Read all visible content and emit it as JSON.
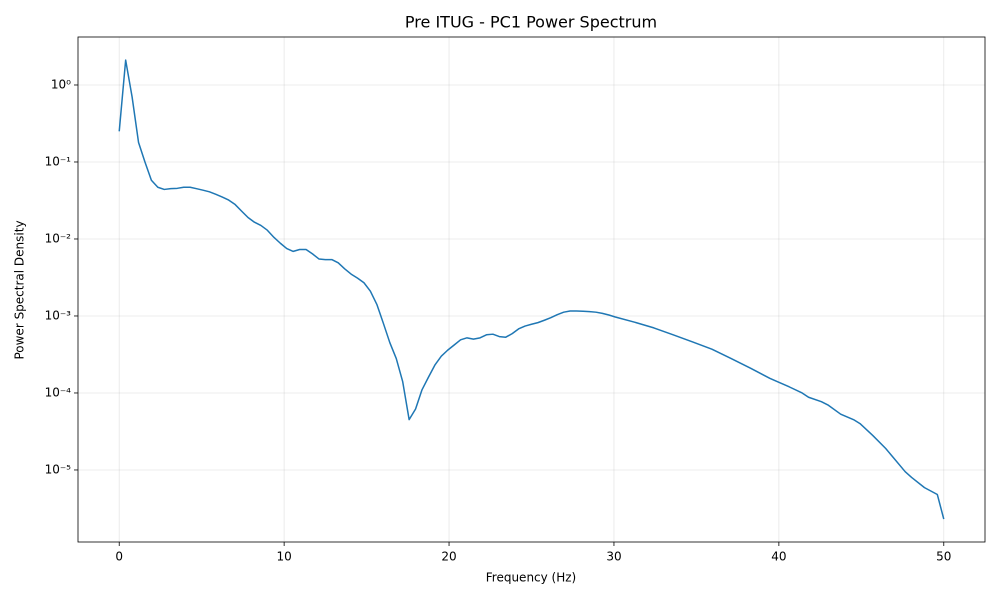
{
  "chart_data": {
    "type": "line",
    "title": "Pre ITUG - PC1 Power Spectrum",
    "x_label": "Frequency (Hz)",
    "y_label": "Power Spectral Density",
    "log_y": true,
    "grid": true,
    "xlim": [
      -2.5,
      52.5
    ],
    "xticks": [
      0,
      10,
      20,
      30,
      40,
      50
    ],
    "ylim": [
      1.16e-06,
      4.2
    ],
    "yticks": [
      {
        "value": 1e-05,
        "label": "10⁻⁵"
      },
      {
        "value": 0.0001,
        "label": "10⁻⁴"
      },
      {
        "value": 0.001,
        "label": "10⁻³"
      },
      {
        "value": 0.01,
        "label": "10⁻²"
      },
      {
        "value": 0.1,
        "label": "10⁻¹"
      },
      {
        "value": 1,
        "label": "10⁰"
      }
    ],
    "x": [
      0,
      0.39,
      0.78,
      1.17,
      1.56,
      1.95,
      2.34,
      2.73,
      3.13,
      3.52,
      3.91,
      4.3,
      4.69,
      5.08,
      5.47,
      5.86,
      6.25,
      6.64,
      7.03,
      7.42,
      7.81,
      8.2,
      8.59,
      8.98,
      9.38,
      9.77,
      10.16,
      10.55,
      10.94,
      11.33,
      11.72,
      12.11,
      12.5,
      12.89,
      13.28,
      13.67,
      14.06,
      14.45,
      14.84,
      15.23,
      15.63,
      16.02,
      16.41,
      16.8,
      17.19,
      17.58,
      17.97,
      18.36,
      18.75,
      19.14,
      19.53,
      19.92,
      20.31,
      20.7,
      21.09,
      21.48,
      21.88,
      22.27,
      22.66,
      23.05,
      23.44,
      23.83,
      24.22,
      24.61,
      25.0,
      25.39,
      25.78,
      26.17,
      26.56,
      26.95,
      27.34,
      27.73,
      28.13,
      28.52,
      28.91,
      29.3,
      29.69,
      30.08,
      31.25,
      32.42,
      33.59,
      34.77,
      35.94,
      37.11,
      38.28,
      39.45,
      40.63,
      41.41,
      41.8,
      42.58,
      42.97,
      43.75,
      44.53,
      44.92,
      45.7,
      46.48,
      46.88,
      47.66,
      48.05,
      48.83,
      49.61,
      50.0
    ],
    "series": [
      {
        "name": "PC1",
        "color": "#1f77b4",
        "values": [
          0.25,
          2.1,
          0.7,
          0.18,
          0.1,
          0.058,
          0.047,
          0.044,
          0.045,
          0.0455,
          0.047,
          0.047,
          0.045,
          0.043,
          0.041,
          0.038,
          0.035,
          0.032,
          0.028,
          0.023,
          0.019,
          0.0165,
          0.015,
          0.013,
          0.0105,
          0.0088,
          0.0075,
          0.0069,
          0.0073,
          0.0073,
          0.0064,
          0.0055,
          0.0054,
          0.0054,
          0.0049,
          0.0041,
          0.0035,
          0.0031,
          0.0027,
          0.0021,
          0.0014,
          0.0008,
          0.00045,
          0.00028,
          0.00014,
          4.5e-05,
          6.2e-05,
          0.00011,
          0.00016,
          0.00023,
          0.0003,
          0.00036,
          0.00042,
          0.00049,
          0.00052,
          0.0005,
          0.00052,
          0.00057,
          0.00058,
          0.00054,
          0.00053,
          0.00059,
          0.00068,
          0.00074,
          0.00078,
          0.00082,
          0.00088,
          0.00095,
          0.00104,
          0.00112,
          0.00116,
          0.00116,
          0.00115,
          0.00114,
          0.00112,
          0.00108,
          0.00103,
          0.00097,
          0.00083,
          0.0007,
          0.00057,
          0.00046,
          0.00037,
          0.00028,
          0.00021,
          0.000155,
          0.00012,
          0.0001,
          8.8e-05,
          7.7e-05,
          7e-05,
          5.3e-05,
          4.5e-05,
          4e-05,
          2.8e-05,
          1.9e-05,
          1.5e-05,
          9.5e-06,
          8e-06,
          5.9e-06,
          4.8e-06,
          2.3e-06
        ]
      }
    ]
  }
}
